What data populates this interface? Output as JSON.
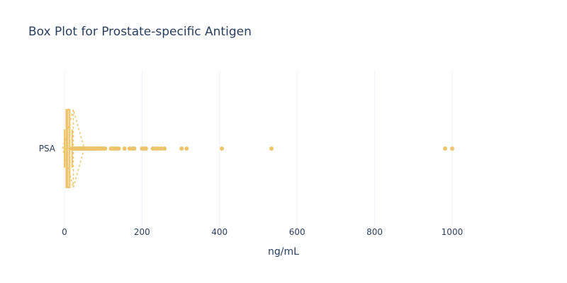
{
  "chart_data": {
    "type": "box",
    "title": "Box Plot for Prostate-specific Antigen",
    "xlabel": "ng/mL",
    "ylabel": "",
    "orientation": "horizontal",
    "xlim": [
      -20,
      1150
    ],
    "xticks": [
      0,
      200,
      400,
      600,
      800,
      1000
    ],
    "xtick_labels": [
      "0",
      "200",
      "400",
      "600",
      "800",
      "1000"
    ],
    "grid": true,
    "legend": "none",
    "color": "#edc46b",
    "series": [
      {
        "category": "PSA",
        "q1": 4.5,
        "median": 7,
        "q3": 10,
        "lowerfence": 0.2,
        "upperfence": 20,
        "mean": 23,
        "sd": 28,
        "outliers": [
          20,
          21,
          22,
          23,
          24,
          25,
          26,
          28,
          30,
          32,
          33,
          35,
          37,
          38,
          40,
          42,
          44,
          45,
          47,
          50,
          52,
          55,
          57,
          60,
          62,
          65,
          68,
          70,
          72,
          75,
          78,
          80,
          82,
          85,
          88,
          90,
          95,
          98,
          100,
          105,
          120,
          125,
          130,
          135,
          140,
          155,
          168,
          175,
          180,
          200,
          205,
          210,
          228,
          235,
          242,
          250,
          258,
          302,
          315,
          406,
          534,
          982,
          1000
        ]
      }
    ]
  }
}
